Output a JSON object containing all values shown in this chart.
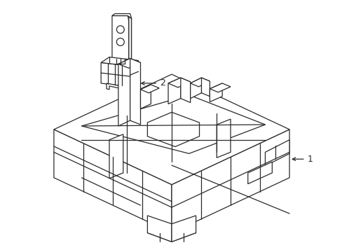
{
  "background_color": "#ffffff",
  "line_color": "#2a2a2a",
  "line_width": 0.9,
  "label1": "1",
  "label2": "2",
  "fig_width": 4.89,
  "fig_height": 3.6,
  "dpi": 100
}
